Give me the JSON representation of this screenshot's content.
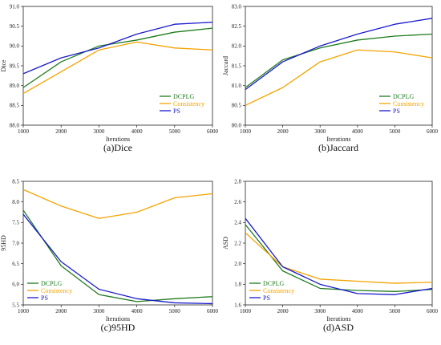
{
  "colors": {
    "DCPLG": "#1e7b1e",
    "Consistency": "#f5a300",
    "PS": "#1a1acc"
  },
  "chart_data": [
    {
      "type": "line",
      "caption": "(a)Dice",
      "xlabel": "Iterations",
      "ylabel": "Dice",
      "x": [
        1000,
        2000,
        3000,
        4000,
        5000,
        6000
      ],
      "xlim": [
        1000,
        6000
      ],
      "ylim": [
        88.0,
        91.0
      ],
      "yticks": [
        "88.0",
        "88.5",
        "89.0",
        "89.5",
        "90.0",
        "90.5",
        "91.0"
      ],
      "series": [
        {
          "name": "DCPLG",
          "values": [
            88.95,
            89.6,
            90.0,
            90.15,
            90.35,
            90.45
          ]
        },
        {
          "name": "Consistency",
          "values": [
            88.8,
            89.35,
            89.9,
            90.1,
            89.95,
            89.9
          ]
        },
        {
          "name": "PS",
          "values": [
            89.3,
            89.7,
            89.95,
            90.3,
            90.55,
            90.6
          ]
        }
      ],
      "legend": "lower-right"
    },
    {
      "type": "line",
      "caption": "(b)Jaccard",
      "xlabel": "Iterations",
      "ylabel": "Jaccard",
      "x": [
        1000,
        2000,
        3000,
        4000,
        5000,
        6000
      ],
      "xlim": [
        1000,
        6000
      ],
      "ylim": [
        80.0,
        83.0
      ],
      "yticks": [
        "80.0",
        "80.5",
        "81.0",
        "81.5",
        "82.0",
        "82.5",
        "83.0"
      ],
      "series": [
        {
          "name": "DCPLG",
          "values": [
            80.95,
            81.65,
            81.95,
            82.15,
            82.25,
            82.3
          ]
        },
        {
          "name": "Consistency",
          "values": [
            80.5,
            80.95,
            81.6,
            81.9,
            81.85,
            81.7
          ]
        },
        {
          "name": "PS",
          "values": [
            80.9,
            81.6,
            82.0,
            82.3,
            82.55,
            82.7
          ]
        }
      ],
      "legend": "lower-right"
    },
    {
      "type": "line",
      "caption": "(c)95HD",
      "xlabel": "Iterations",
      "ylabel": "95HD",
      "x": [
        1000,
        2000,
        3000,
        4000,
        5000,
        6000
      ],
      "xlim": [
        1000,
        6000
      ],
      "ylim": [
        5.5,
        8.5
      ],
      "yticks": [
        "5.5",
        "6.0",
        "6.5",
        "7.0",
        "7.5",
        "8.0",
        "8.5"
      ],
      "series": [
        {
          "name": "DCPLG",
          "values": [
            7.8,
            6.45,
            5.75,
            5.58,
            5.65,
            5.7
          ]
        },
        {
          "name": "Consistency",
          "values": [
            8.3,
            7.9,
            7.6,
            7.75,
            8.1,
            8.2
          ]
        },
        {
          "name": "PS",
          "values": [
            7.7,
            6.55,
            5.88,
            5.65,
            5.55,
            5.53
          ]
        }
      ],
      "legend": "lower-left"
    },
    {
      "type": "line",
      "caption": "(d)ASD",
      "xlabel": "Iterations",
      "ylabel": "ASD",
      "x": [
        1000,
        2000,
        3000,
        4000,
        5000,
        6000
      ],
      "xlim": [
        1000,
        6000
      ],
      "ylim": [
        1.6,
        2.8
      ],
      "yticks": [
        "1.6",
        "1.8",
        "2.0",
        "2.2",
        "2.4",
        "2.6",
        "2.8"
      ],
      "series": [
        {
          "name": "DCPLG",
          "values": [
            2.38,
            1.93,
            1.76,
            1.74,
            1.73,
            1.75
          ]
        },
        {
          "name": "Consistency",
          "values": [
            2.3,
            1.97,
            1.85,
            1.83,
            1.81,
            1.82
          ]
        },
        {
          "name": "PS",
          "values": [
            2.44,
            1.97,
            1.8,
            1.71,
            1.7,
            1.76
          ]
        }
      ],
      "legend": "lower-left"
    }
  ]
}
